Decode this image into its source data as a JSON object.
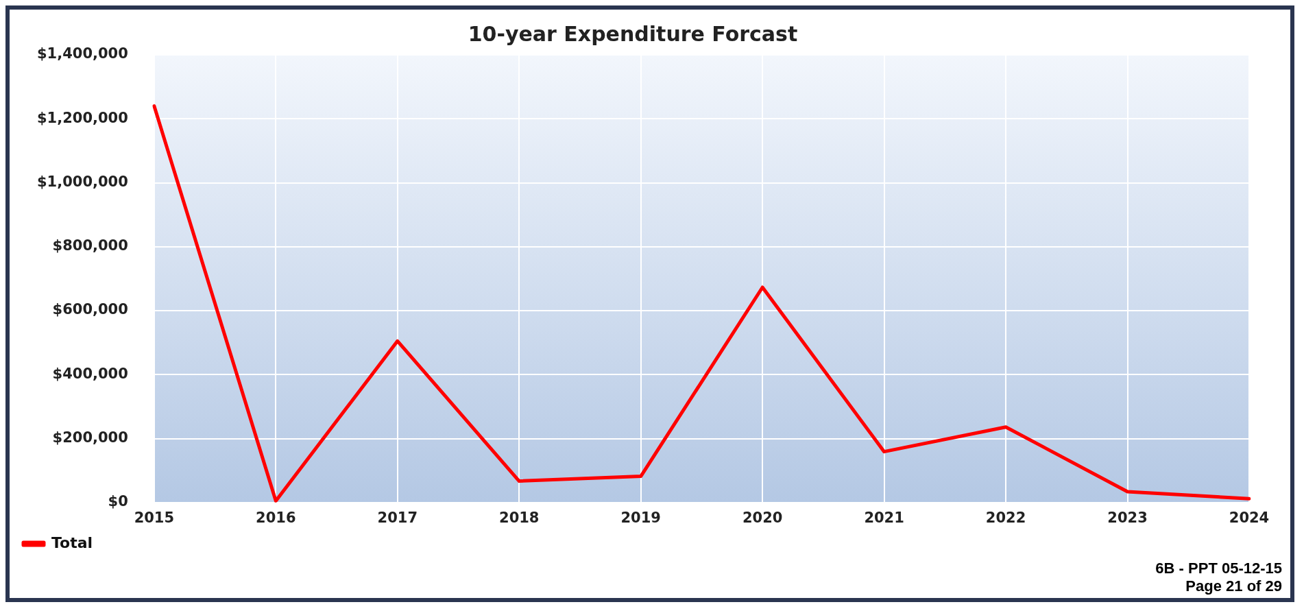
{
  "chart_data": {
    "type": "line",
    "title": "10-year Expenditure Forcast",
    "categories": [
      "2015",
      "2016",
      "2017",
      "2018",
      "2019",
      "2020",
      "2021",
      "2022",
      "2023",
      "2024"
    ],
    "series": [
      {
        "name": "Total",
        "color": "#ff0000",
        "values": [
          1240000,
          5000,
          505000,
          67000,
          82000,
          673000,
          159000,
          236000,
          34000,
          12000
        ]
      }
    ],
    "ylim": [
      0,
      1400000
    ],
    "yticks": [
      {
        "value": 0,
        "label": "$0"
      },
      {
        "value": 200000,
        "label": "$200,000"
      },
      {
        "value": 400000,
        "label": "$400,000"
      },
      {
        "value": 600000,
        "label": "$600,000"
      },
      {
        "value": 800000,
        "label": "$800,000"
      },
      {
        "value": 1000000,
        "label": "$1,000,000"
      },
      {
        "value": 1200000,
        "label": "$1,200,000"
      },
      {
        "value": 1400000,
        "label": "$1,400,000"
      }
    ],
    "grid": true,
    "legend": "bottom left",
    "marker": "none",
    "line_style": "solid",
    "annotations": [
      "6B - PPT 05-12-15 Page 21 of 29"
    ]
  }
}
